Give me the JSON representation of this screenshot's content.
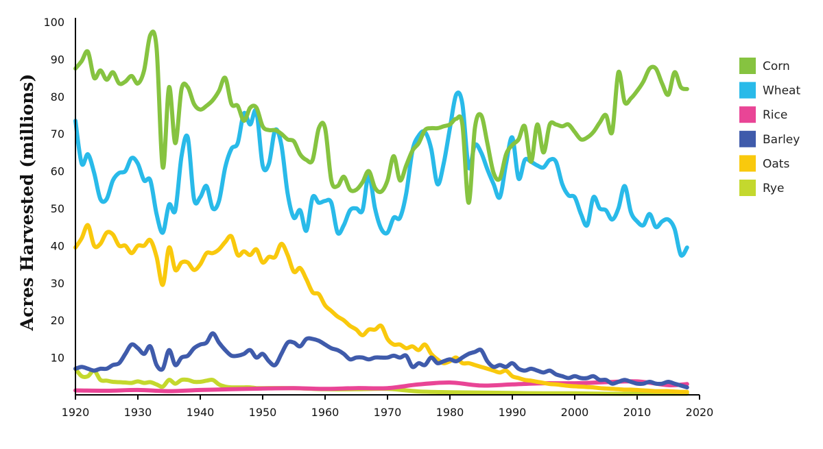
{
  "chart_data": {
    "type": "line",
    "title": "",
    "xlabel": "",
    "ylabel": "Acres Harvested (millions)",
    "xlim": [
      1920,
      2020
    ],
    "ylim": [
      0,
      100
    ],
    "x_ticks": [
      1920,
      1930,
      1940,
      1950,
      1960,
      1970,
      1980,
      1990,
      2000,
      2010,
      2020
    ],
    "y_ticks": [
      10,
      20,
      30,
      40,
      50,
      60,
      70,
      80,
      90,
      100
    ],
    "legend_position": "right",
    "series": [
      {
        "name": "Corn",
        "color": "#86c340",
        "x": [
          1920,
          1921,
          1922,
          1923,
          1924,
          1925,
          1926,
          1927,
          1928,
          1929,
          1930,
          1931,
          1932,
          1933,
          1934,
          1935,
          1936,
          1937,
          1938,
          1939,
          1940,
          1941,
          1942,
          1943,
          1944,
          1945,
          1946,
          1947,
          1948,
          1949,
          1950,
          1951,
          1952,
          1953,
          1954,
          1955,
          1956,
          1957,
          1958,
          1959,
          1960,
          1961,
          1962,
          1963,
          1964,
          1965,
          1966,
          1967,
          1968,
          1969,
          1970,
          1971,
          1972,
          1973,
          1974,
          1975,
          1976,
          1977,
          1978,
          1979,
          1980,
          1981,
          1982,
          1983,
          1984,
          1985,
          1986,
          1987,
          1988,
          1989,
          1990,
          1991,
          1992,
          1993,
          1994,
          1995,
          1996,
          1997,
          1998,
          1999,
          2000,
          2001,
          2002,
          2003,
          2004,
          2005,
          2006,
          2007,
          2008,
          2009,
          2010,
          2011,
          2012,
          2013,
          2014,
          2015,
          2016,
          2017,
          2018
        ],
        "values": [
          87.5,
          89.5,
          92,
          85,
          87,
          84.5,
          86.5,
          83.5,
          84,
          85.5,
          83.5,
          87,
          96.5,
          93,
          61,
          82.5,
          67.5,
          82,
          82.5,
          78,
          76.5,
          77.5,
          79,
          81.5,
          85,
          78,
          77.5,
          73.5,
          77,
          77,
          72,
          71,
          71,
          70,
          68.5,
          68,
          64.5,
          63,
          63,
          71.5,
          71.5,
          57.5,
          56,
          58.5,
          55,
          55,
          57,
          60,
          55.5,
          54.5,
          57.5,
          64,
          57.5,
          61.5,
          65.5,
          67.5,
          71,
          71.5,
          71.5,
          72,
          72.5,
          74,
          72.5,
          51.5,
          71.5,
          75,
          67.5,
          59.5,
          58,
          64.5,
          67,
          68.5,
          72,
          62.5,
          72.5,
          65,
          72.5,
          72.5,
          72,
          72.5,
          70.5,
          68.5,
          69,
          70.5,
          73,
          75,
          70.5,
          86.5,
          78.5,
          79.5,
          81.5,
          84,
          87.5,
          87.5,
          83.5,
          80.5,
          86.5,
          82.5,
          82
        ]
      },
      {
        "name": "Wheat",
        "color": "#29bae9",
        "x": [
          1920,
          1921,
          1922,
          1923,
          1924,
          1925,
          1926,
          1927,
          1928,
          1929,
          1930,
          1931,
          1932,
          1933,
          1934,
          1935,
          1936,
          1937,
          1938,
          1939,
          1940,
          1941,
          1942,
          1943,
          1944,
          1945,
          1946,
          1947,
          1948,
          1949,
          1950,
          1951,
          1952,
          1953,
          1954,
          1955,
          1956,
          1957,
          1958,
          1959,
          1960,
          1961,
          1962,
          1963,
          1964,
          1965,
          1966,
          1967,
          1968,
          1969,
          1970,
          1971,
          1972,
          1973,
          1974,
          1975,
          1976,
          1977,
          1978,
          1979,
          1980,
          1981,
          1982,
          1983,
          1984,
          1985,
          1986,
          1987,
          1988,
          1989,
          1990,
          1991,
          1992,
          1993,
          1994,
          1995,
          1996,
          1997,
          1998,
          1999,
          2000,
          2001,
          2002,
          2003,
          2004,
          2005,
          2006,
          2007,
          2008,
          2009,
          2010,
          2011,
          2012,
          2013,
          2014,
          2015,
          2016,
          2017,
          2018
        ],
        "values": [
          73.5,
          62,
          64.5,
          59.5,
          52.5,
          52.5,
          57.5,
          59.5,
          60,
          63.5,
          62,
          57.5,
          57.5,
          48.5,
          43.5,
          51,
          49.5,
          64,
          69,
          52.5,
          53,
          56,
          50,
          52,
          61,
          66,
          67.5,
          75.5,
          72.5,
          76,
          61.5,
          62,
          71,
          67,
          54,
          47.5,
          49.5,
          44,
          53,
          51.5,
          52,
          51.5,
          43.5,
          45.5,
          49.5,
          50,
          49.5,
          59,
          50,
          44.5,
          43.5,
          47.5,
          47.5,
          54,
          65.5,
          69.5,
          70.5,
          66,
          56.5,
          62,
          71.5,
          80.5,
          78,
          61,
          67,
          65,
          60.5,
          56.5,
          53,
          62,
          69,
          58,
          63,
          62.5,
          61.5,
          61,
          63,
          62.5,
          56.5,
          53.5,
          53,
          48.5,
          45.5,
          53,
          50,
          49.5,
          47,
          50,
          56,
          49,
          46.5,
          45.5,
          48.5,
          45,
          46.5,
          47,
          44.5,
          37.5,
          39.5
        ]
      },
      {
        "name": "Rice",
        "color": "#e94596",
        "x": [
          1920,
          1925,
          1930,
          1935,
          1940,
          1945,
          1950,
          1955,
          1960,
          1965,
          1970,
          1975,
          1980,
          1985,
          1990,
          1995,
          2000,
          2005,
          2010,
          2015,
          2018
        ],
        "values": [
          1.2,
          1.1,
          1.3,
          1,
          1.3,
          1.5,
          1.7,
          1.8,
          1.6,
          1.8,
          1.8,
          2.8,
          3.3,
          2.5,
          2.8,
          3.1,
          3.1,
          3.4,
          3.6,
          2.6,
          2.9
        ]
      },
      {
        "name": "Barley",
        "color": "#3f5bab",
        "x": [
          1920,
          1921,
          1922,
          1923,
          1924,
          1925,
          1926,
          1927,
          1928,
          1929,
          1930,
          1931,
          1932,
          1933,
          1934,
          1935,
          1936,
          1937,
          1938,
          1939,
          1940,
          1941,
          1942,
          1943,
          1944,
          1945,
          1946,
          1947,
          1948,
          1949,
          1950,
          1951,
          1952,
          1953,
          1954,
          1955,
          1956,
          1957,
          1958,
          1959,
          1960,
          1961,
          1962,
          1963,
          1964,
          1965,
          1966,
          1967,
          1968,
          1969,
          1970,
          1971,
          1972,
          1973,
          1974,
          1975,
          1976,
          1977,
          1978,
          1979,
          1980,
          1981,
          1982,
          1983,
          1984,
          1985,
          1986,
          1987,
          1988,
          1989,
          1990,
          1991,
          1992,
          1993,
          1994,
          1995,
          1996,
          1997,
          1998,
          1999,
          2000,
          2001,
          2002,
          2003,
          2004,
          2005,
          2006,
          2007,
          2008,
          2009,
          2010,
          2011,
          2012,
          2013,
          2014,
          2015,
          2016,
          2017,
          2018
        ],
        "values": [
          7,
          7.5,
          7,
          6.5,
          7,
          7,
          8,
          8.5,
          11,
          13.5,
          12.5,
          11,
          13,
          8,
          7,
          12,
          8,
          10,
          10.5,
          12.5,
          13.5,
          14,
          16.5,
          14,
          12,
          10.5,
          10.5,
          11,
          12,
          10,
          11,
          9,
          8,
          11,
          14,
          14,
          13,
          15,
          15,
          14.5,
          13.5,
          12.5,
          12,
          11,
          9.5,
          10,
          10,
          9.5,
          10,
          10,
          10,
          10.5,
          10,
          10.5,
          7.5,
          8.5,
          8,
          10,
          8.5,
          9,
          9.5,
          9,
          10,
          11,
          11.5,
          12,
          9,
          7.5,
          8,
          7.5,
          8.5,
          7,
          6.5,
          7,
          6.5,
          6,
          6.5,
          5.5,
          5,
          4.5,
          5,
          4.5,
          4.5,
          5,
          4,
          4,
          3,
          3.5,
          4,
          3.5,
          3,
          3,
          3.5,
          3,
          3,
          3.5,
          3,
          2.5,
          2
        ]
      },
      {
        "name": "Oats",
        "color": "#f9c90d",
        "x": [
          1920,
          1921,
          1922,
          1923,
          1924,
          1925,
          1926,
          1927,
          1928,
          1929,
          1930,
          1931,
          1932,
          1933,
          1934,
          1935,
          1936,
          1937,
          1938,
          1939,
          1940,
          1941,
          1942,
          1943,
          1944,
          1945,
          1946,
          1947,
          1948,
          1949,
          1950,
          1951,
          1952,
          1953,
          1954,
          1955,
          1956,
          1957,
          1958,
          1959,
          1960,
          1961,
          1962,
          1963,
          1964,
          1965,
          1966,
          1967,
          1968,
          1969,
          1970,
          1971,
          1972,
          1973,
          1974,
          1975,
          1976,
          1977,
          1978,
          1979,
          1980,
          1981,
          1982,
          1983,
          1984,
          1985,
          1986,
          1987,
          1988,
          1989,
          1990,
          1991,
          1992,
          1993,
          1994,
          1995,
          1996,
          1997,
          1998,
          1999,
          2000,
          2001,
          2002,
          2003,
          2004,
          2005,
          2006,
          2007,
          2008,
          2009,
          2010,
          2011,
          2012,
          2013,
          2014,
          2015,
          2016,
          2017,
          2018
        ],
        "values": [
          39.5,
          42,
          45.5,
          40,
          40.5,
          43.5,
          43,
          40,
          40,
          38,
          40,
          40,
          41.5,
          37,
          29.5,
          39.5,
          33.5,
          35.5,
          35.5,
          33.5,
          35,
          38,
          38,
          39,
          41,
          42.5,
          37.5,
          38.5,
          37.5,
          39,
          35.5,
          37,
          37,
          40.5,
          37.5,
          33,
          34,
          31,
          27.5,
          27,
          24,
          22.5,
          21,
          20,
          18.5,
          17.5,
          16,
          17.5,
          17.5,
          18.5,
          15,
          13.5,
          13.5,
          12.5,
          13,
          12,
          13.5,
          11,
          9.5,
          8.5,
          9,
          10,
          8.5,
          8.5,
          8,
          7.5,
          7,
          6.5,
          6,
          6.5,
          5,
          4.5,
          4,
          3.8,
          3.5,
          3.2,
          2.9,
          2.8,
          2.6,
          2.4,
          2.3,
          2.2,
          2.1,
          2,
          1.8,
          1.7,
          1.6,
          1.5,
          1.4,
          1.4,
          1.3,
          1.2,
          1.1,
          1,
          1,
          1,
          0.9,
          0.8,
          0.8
        ]
      },
      {
        "name": "Rye",
        "color": "#c4d82e",
        "x": [
          1920,
          1921,
          1922,
          1923,
          1924,
          1925,
          1926,
          1927,
          1928,
          1929,
          1930,
          1931,
          1932,
          1933,
          1934,
          1935,
          1936,
          1937,
          1938,
          1939,
          1940,
          1941,
          1942,
          1943,
          1944,
          1945,
          1946,
          1947,
          1948,
          1949,
          1950,
          1955,
          1960,
          1965,
          1970,
          1975,
          1980,
          1985,
          1990,
          1995,
          2000,
          2005,
          2010,
          2015,
          2018
        ],
        "values": [
          7,
          5,
          5,
          6.5,
          4,
          3.8,
          3.5,
          3.4,
          3.3,
          3.2,
          3.6,
          3.2,
          3.4,
          2.8,
          2.2,
          4,
          3,
          4,
          4,
          3.5,
          3.5,
          3.8,
          4,
          2.8,
          2.2,
          2,
          2,
          2,
          2,
          1.8,
          1.8,
          1.8,
          1.5,
          1.5,
          1.6,
          0.9,
          0.7,
          0.6,
          0.5,
          0.4,
          0.4,
          0.3,
          0.3,
          0.3,
          0.3
        ]
      }
    ]
  }
}
